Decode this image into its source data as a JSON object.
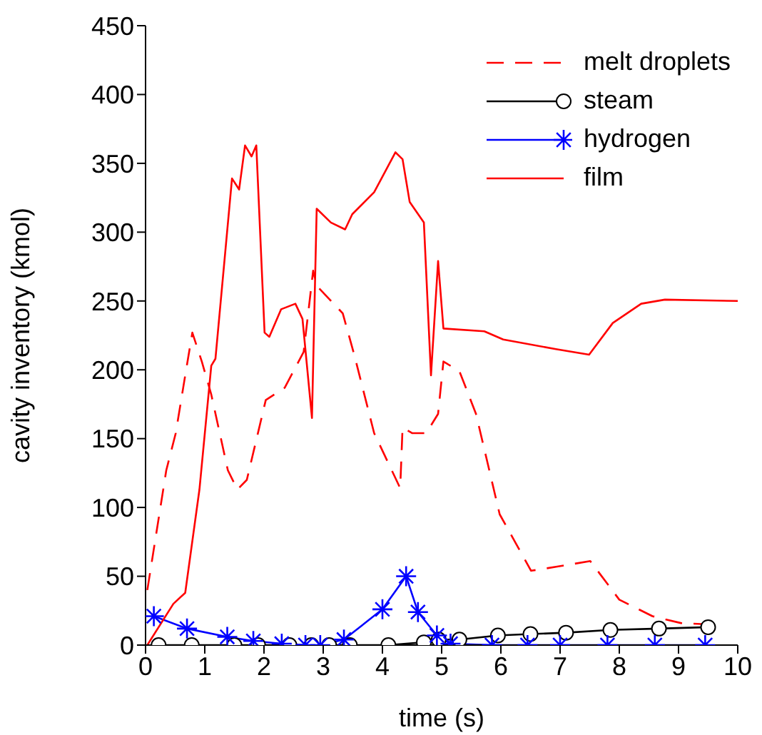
{
  "chart_data": {
    "type": "line",
    "xlabel": "time (s)",
    "ylabel": "cavity inventory (kmol)",
    "xlim": [
      0,
      10
    ],
    "ylim": [
      0,
      450
    ],
    "xticks": [
      0,
      1,
      2,
      3,
      4,
      5,
      6,
      7,
      8,
      9,
      10
    ],
    "yticks": [
      0,
      50,
      100,
      150,
      200,
      250,
      300,
      350,
      400,
      450
    ],
    "grid": false,
    "legend": "top right",
    "series": [
      {
        "name": "melt droplets",
        "color": "#ff0000",
        "line_style": "dashed",
        "marker": "none",
        "x": [
          0.03,
          0.35,
          0.51,
          0.67,
          0.79,
          0.95,
          1.11,
          1.39,
          1.55,
          1.71,
          2.03,
          2.35,
          2.67,
          2.83,
          2.89,
          3.33,
          3.53,
          3.86,
          4.3,
          4.34,
          4.5,
          4.74,
          4.94,
          5.03,
          5.3,
          5.58,
          5.98,
          6.51,
          6.95,
          7.51,
          8.0,
          8.56,
          9.04,
          9.52
        ],
        "values": [
          40,
          127,
          154,
          196,
          227,
          206,
          182,
          127,
          113,
          120,
          178,
          187,
          213,
          272,
          261,
          241,
          210,
          154,
          114,
          158,
          154,
          154,
          168,
          206,
          199,
          168,
          95,
          54,
          57,
          61,
          33,
          21,
          16,
          15
        ]
      },
      {
        "name": "steam",
        "color": "#000000",
        "line_style": "solid",
        "marker": "circle",
        "x": [
          0.22,
          0.78,
          1.5,
          1.9,
          2.43,
          2.8,
          3.1,
          3.45,
          4.1,
          4.7,
          4.95,
          5.3,
          5.95,
          6.5,
          7.1,
          7.85,
          8.67,
          9.5
        ],
        "values": [
          0,
          0,
          0,
          0,
          0,
          0,
          0,
          0,
          0,
          2,
          4,
          4,
          7,
          8,
          9,
          11,
          12,
          13
        ]
      },
      {
        "name": "hydrogen",
        "color": "#0000ff",
        "line_style": "solid",
        "marker": "cross",
        "x": [
          0.14,
          0.7,
          1.38,
          1.82,
          2.3,
          2.7,
          2.95,
          3.35,
          4.0,
          4.4,
          4.6,
          4.92,
          5.15,
          5.85,
          6.45,
          7.0,
          7.8,
          8.6,
          9.45
        ],
        "values": [
          21,
          12,
          6,
          3,
          1,
          0,
          0,
          4,
          26,
          50,
          24,
          7,
          1,
          0,
          0,
          0,
          0,
          0,
          0
        ]
      },
      {
        "name": "film",
        "color": "#ff0000",
        "line_style": "solid",
        "marker": "none",
        "x": [
          0.03,
          0.47,
          0.67,
          0.91,
          1.11,
          1.18,
          1.46,
          1.58,
          1.68,
          1.79,
          1.87,
          2.01,
          2.09,
          2.29,
          2.53,
          2.65,
          2.81,
          2.89,
          3.13,
          3.37,
          3.49,
          3.86,
          4.22,
          4.34,
          4.46,
          4.7,
          4.82,
          4.94,
          5.03,
          5.72,
          6.04,
          6.93,
          7.49,
          7.89,
          8.37,
          8.77,
          10
        ],
        "values": [
          0,
          30,
          38,
          113,
          203,
          208,
          339,
          331,
          363,
          355,
          363,
          227,
          224,
          244,
          248,
          237,
          165,
          317,
          307,
          302,
          313,
          329,
          358,
          353,
          322,
          307,
          196,
          279,
          230,
          228,
          222,
          215,
          211,
          234,
          248,
          251,
          250
        ]
      }
    ]
  }
}
